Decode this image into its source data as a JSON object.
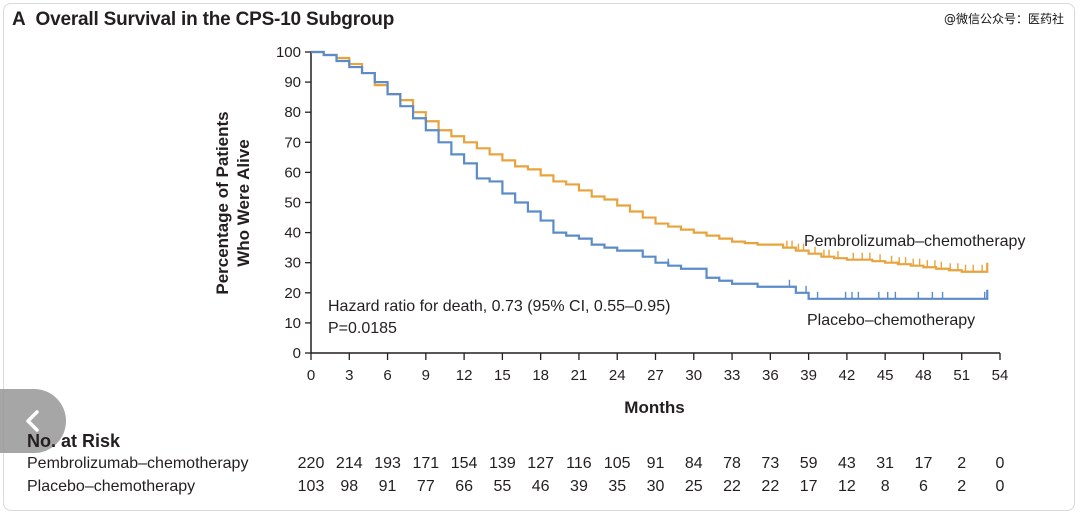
{
  "panel": {
    "letter": "A",
    "title": "Overall Survival in the CPS-10 Subgroup"
  },
  "watermark": "@微信公众号：医药社",
  "chart_data": {
    "type": "line",
    "subtype": "kaplan-meier",
    "xlabel": "Months",
    "ylabel": [
      "Percentage of Patients",
      "Who Were Alive"
    ],
    "xlim": [
      0,
      54
    ],
    "ylim": [
      0,
      100
    ],
    "xticks": [
      0,
      3,
      6,
      9,
      12,
      15,
      18,
      21,
      24,
      27,
      30,
      33,
      36,
      39,
      42,
      45,
      48,
      51,
      54
    ],
    "yticks": [
      0,
      10,
      20,
      30,
      40,
      50,
      60,
      70,
      80,
      90,
      100
    ],
    "grid": false,
    "series": [
      {
        "name": "Pembrolizumab–chemotherapy",
        "color": "#e8a33d",
        "x": [
          0,
          1,
          2,
          3,
          4,
          5,
          6,
          7,
          8,
          9,
          10,
          11,
          12,
          13,
          14,
          15,
          16,
          17,
          18,
          19,
          20,
          21,
          22,
          23,
          24,
          25,
          26,
          27,
          28,
          29,
          30,
          31,
          32,
          33,
          34,
          35,
          36,
          37,
          38,
          39,
          40,
          41,
          42,
          43,
          44,
          45,
          46,
          47,
          48,
          49,
          50,
          51,
          52,
          53
        ],
        "y": [
          100,
          99,
          98,
          96,
          93,
          89,
          86,
          84,
          80,
          77,
          74,
          72,
          70,
          68,
          66,
          64,
          62,
          61,
          59,
          57,
          56,
          54,
          52,
          51,
          49,
          47,
          45,
          43,
          42,
          41,
          40,
          39,
          38,
          37,
          36.5,
          36,
          36,
          35,
          34,
          33,
          32,
          31.5,
          31,
          31,
          30.5,
          30,
          29.5,
          29,
          28.5,
          28,
          27.5,
          27,
          27,
          27
        ],
        "censor_x": [
          4,
          37.3,
          37.7,
          38.2,
          38.6,
          39.5,
          40.2,
          40.6,
          41.3,
          42.5,
          43.2,
          43.8,
          44.6,
          45.5,
          46.1,
          46.6,
          47.2,
          47.7,
          48.3,
          48.9,
          49.4,
          50.1,
          50.7,
          51.3,
          51.9,
          52.6
        ]
      },
      {
        "name": "Placebo–chemotherapy",
        "color": "#5b8cc9",
        "x": [
          0,
          1,
          2,
          3,
          4,
          5,
          6,
          7,
          8,
          9,
          10,
          11,
          12,
          13,
          14,
          15,
          16,
          17,
          18,
          19,
          20,
          21,
          22,
          23,
          24,
          25,
          26,
          27,
          28,
          29,
          30,
          31,
          32,
          33,
          34,
          35,
          36,
          37,
          38,
          39,
          40,
          41,
          42,
          43,
          44,
          45,
          46,
          47,
          48,
          49,
          50,
          51,
          52,
          53
        ],
        "y": [
          100,
          99,
          97,
          95,
          93,
          90,
          86,
          82,
          78,
          74,
          70,
          66,
          63,
          58,
          57,
          53,
          50,
          47,
          44,
          40,
          39,
          38,
          36,
          35,
          34,
          34,
          32,
          30,
          29,
          28,
          28,
          25,
          24,
          23,
          23,
          22,
          22,
          22,
          20,
          18,
          18,
          18,
          18,
          18,
          18,
          18,
          18,
          18,
          18,
          18,
          18,
          18,
          18,
          18
        ],
        "censor_x": [
          28,
          37.5,
          38.8,
          39.7,
          41.9,
          42.4,
          42.9,
          44.5,
          45.2,
          45.8,
          47.6,
          48.7,
          49.5,
          52.8
        ]
      }
    ],
    "series_labels": [
      "Pembrolizumab–chemotherapy",
      "Placebo–chemotherapy"
    ],
    "annotations": {
      "hazard": "Hazard ratio for death, 0.73 (95% CI, 0.55–0.95)",
      "pvalue": "P=0.0185"
    },
    "risk_table": {
      "heading": "No. at Risk",
      "rows": [
        {
          "label": "Pembrolizumab–chemotherapy",
          "values": [
            "220",
            "214",
            "193",
            "171",
            "154",
            "139",
            "127",
            "116",
            "105",
            "91",
            "84",
            "78",
            "73",
            "59",
            "43",
            "31",
            "17",
            "2",
            "0"
          ]
        },
        {
          "label": "Placebo–chemotherapy",
          "values": [
            "103",
            "98",
            "91",
            "77",
            "66",
            "55",
            "46",
            "39",
            "35",
            "30",
            "25",
            "22",
            "22",
            "17",
            "12",
            "8",
            "6",
            "2",
            "0"
          ]
        }
      ]
    }
  }
}
